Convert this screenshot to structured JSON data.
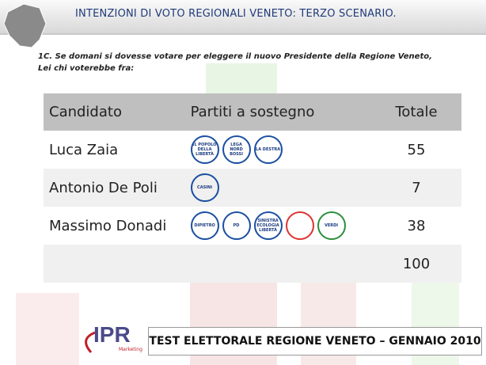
{
  "header": {
    "title": "INTENZIONI DI VOTO REGIONALI VENETO: TERZO SCENARIO."
  },
  "question": [
    "1C. Se domani si dovesse votare per eleggere il nuovo Presidente della Regione Veneto,",
    "Lei chi voterebbe fra:"
  ],
  "table": {
    "columns": [
      "Candidato",
      "Partiti a sostegno",
      "Totale"
    ],
    "rows": [
      {
        "candidate": "Luca Zaia",
        "parties": [
          "IL POPOLO DELLA LIBERTÀ",
          "LEGA NORD BOSSI",
          "LA DESTRA"
        ],
        "total": 55
      },
      {
        "candidate": "Antonio De Poli",
        "parties": [
          "CASINI"
        ],
        "total": 7
      },
      {
        "candidate": "Massimo Donadi",
        "parties": [
          "DIPIETRO",
          "PD",
          "SINISTRA ECOLOGIA LIBERTÀ",
          "",
          "VERDI"
        ],
        "total": 38
      },
      {
        "candidate": "",
        "parties": [],
        "total": 100
      }
    ]
  },
  "footer": {
    "logo": "IPR",
    "logo_sub": "Marketing",
    "text": "TEST ELETTORALE REGIONE VENETO – GENNAIO 2010"
  }
}
